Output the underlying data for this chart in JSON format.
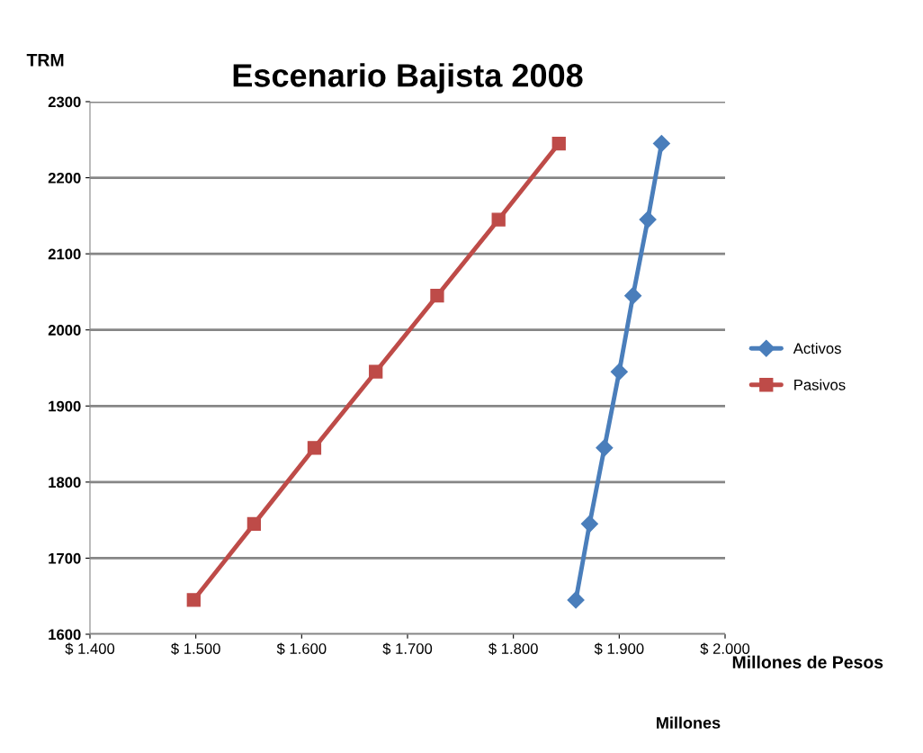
{
  "chart_data": {
    "type": "line",
    "title": "Escenario Bajista 2008",
    "xlabel": "Millones de Pesos",
    "ylabel": "TRM",
    "annotations": [
      "Millones"
    ],
    "series": [
      {
        "name": "Activos",
        "color": "#4a7ebb",
        "marker": "diamond",
        "x": [
          1859,
          1872,
          1886,
          1900,
          1913,
          1927,
          1940
        ],
        "values": [
          1645,
          1745,
          1845,
          1945,
          2045,
          2145,
          2245
        ]
      },
      {
        "name": "Pasivos",
        "color": "#be4b48",
        "marker": "square",
        "x": [
          1498,
          1555,
          1612,
          1670,
          1728,
          1786,
          1843
        ],
        "values": [
          1645,
          1745,
          1845,
          1945,
          2045,
          2145,
          2245
        ]
      }
    ],
    "xlim": [
      1400,
      2000
    ],
    "xticks": [
      {
        "value": 1400,
        "label": "$ 1.400"
      },
      {
        "value": 1500,
        "label": "$ 1.500"
      },
      {
        "value": 1600,
        "label": "$ 1.600"
      },
      {
        "value": 1700,
        "label": "$ 1.700"
      },
      {
        "value": 1800,
        "label": "$ 1.800"
      },
      {
        "value": 1900,
        "label": "$ 1.900"
      },
      {
        "value": 2000,
        "label": "$ 2.000"
      }
    ],
    "ylim": [
      1600,
      2300
    ],
    "yticks": [
      1600,
      1700,
      1800,
      1900,
      2000,
      2100,
      2200,
      2300
    ],
    "grid": "y",
    "legend": "right",
    "line_style": "solid"
  }
}
